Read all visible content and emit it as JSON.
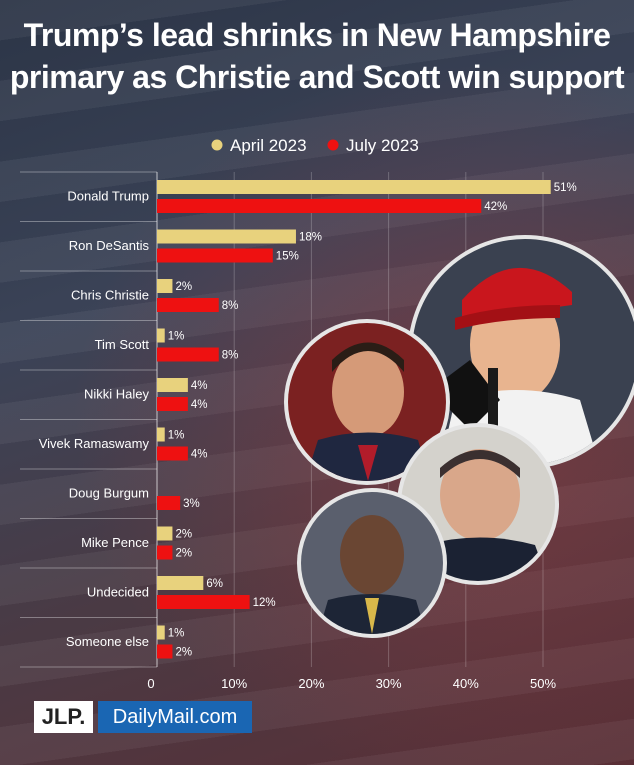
{
  "headline": {
    "line1": "Trump’s lead shrinks in New Hampshire",
    "line2": "primary as Christie and Scott win support"
  },
  "logos": {
    "jlp": "JLP.",
    "dailymail": "DailyMail.com"
  },
  "chart_data": {
    "type": "bar",
    "orientation": "horizontal",
    "categories": [
      "Donald Trump",
      "Ron DeSantis",
      "Chris Christie",
      "Tim Scott",
      "Nikki Haley",
      "Vivek Ramaswamy",
      "Doug Burgum",
      "Mike Pence",
      "Undecided",
      "Someone else"
    ],
    "series": [
      {
        "name": "April 2023",
        "color": "#e8d27d",
        "values": [
          51,
          18,
          2,
          1,
          4,
          1,
          0,
          2,
          6,
          1
        ]
      },
      {
        "name": "July 2023",
        "color": "#ee1111",
        "values": [
          42,
          15,
          8,
          8,
          4,
          4,
          3,
          2,
          12,
          2
        ]
      }
    ],
    "xlim": [
      0,
      55
    ],
    "xticks": [
      0,
      10,
      20,
      30,
      40,
      50
    ],
    "tick_labels": [
      "0",
      "10%",
      "20%",
      "30%",
      "40%",
      "50%"
    ],
    "value_suffix": "%",
    "legend": "top-center",
    "grid": true
  }
}
